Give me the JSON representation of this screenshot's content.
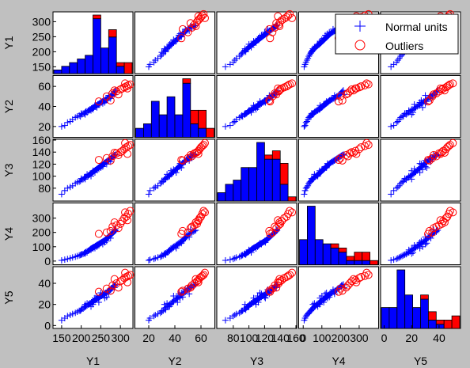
{
  "colors": {
    "background": "#c0c0c0",
    "panel": "#ffffff",
    "normal": "#0000ff",
    "outlier": "#ff0000",
    "bar_outline": "#000000"
  },
  "chart_data": {
    "type": "scatter",
    "title": "",
    "layout": "scatterplot-matrix",
    "grid": false,
    "legend_position": "top-right",
    "variables": [
      "Y1",
      "Y2",
      "Y3",
      "Y4",
      "Y5"
    ],
    "ranges": {
      "Y1": [
        130,
        330
      ],
      "Y2": [
        10,
        70
      ],
      "Y3": [
        60,
        160
      ],
      "Y4": [
        -20,
        400
      ],
      "Y5": [
        -2,
        55
      ]
    },
    "ticks": {
      "Y1": {
        "x": [
          150,
          200,
          250,
          300
        ],
        "y": [
          150,
          200,
          250,
          300
        ]
      },
      "Y2": {
        "x": [
          20,
          40,
          60
        ],
        "y": [
          20,
          40,
          60
        ]
      },
      "Y3": {
        "x": [
          80,
          100,
          120,
          140,
          160
        ],
        "y": [
          80,
          100,
          120,
          140,
          160
        ]
      },
      "Y4": {
        "x": [
          0,
          100,
          200,
          300
        ],
        "y": [
          0,
          100,
          200,
          300
        ]
      },
      "Y5": {
        "x": [
          0,
          20,
          40
        ],
        "y": [
          0,
          20,
          40
        ]
      }
    },
    "legend": [
      {
        "label": "Normal units",
        "marker": "plus",
        "color": "#0000ff"
      },
      {
        "label": "Outliers",
        "marker": "circle",
        "color": "#ff0000"
      }
    ],
    "series": [
      {
        "name": "Normal units",
        "marker": "plus",
        "color": "#0000ff",
        "points": [
          [
            150,
            20,
            70,
            5,
            5
          ],
          [
            158,
            21,
            76,
            10,
            7
          ],
          [
            165,
            24,
            80,
            15,
            9
          ],
          [
            172,
            25,
            82,
            20,
            10
          ],
          [
            178,
            27,
            84,
            25,
            11
          ],
          [
            185,
            29,
            88,
            30,
            12
          ],
          [
            190,
            30,
            90,
            35,
            13
          ],
          [
            195,
            31,
            91,
            40,
            14
          ],
          [
            198,
            30,
            92,
            42,
            14
          ],
          [
            202,
            32,
            94,
            48,
            16
          ],
          [
            205,
            33,
            95,
            50,
            16
          ],
          [
            208,
            33,
            97,
            55,
            17
          ],
          [
            210,
            34,
            98,
            60,
            18
          ],
          [
            212,
            35,
            99,
            63,
            18
          ],
          [
            215,
            35,
            100,
            68,
            19
          ],
          [
            218,
            36,
            101,
            72,
            20
          ],
          [
            220,
            36,
            102,
            75,
            20
          ],
          [
            222,
            37,
            103,
            80,
            21
          ],
          [
            224,
            37,
            104,
            85,
            21
          ],
          [
            226,
            38,
            105,
            88,
            22
          ],
          [
            228,
            38,
            106,
            92,
            22
          ],
          [
            230,
            39,
            107,
            95,
            23
          ],
          [
            232,
            39,
            108,
            98,
            23
          ],
          [
            234,
            40,
            109,
            100,
            24
          ],
          [
            236,
            40,
            110,
            105,
            24
          ],
          [
            238,
            41,
            111,
            108,
            25
          ],
          [
            240,
            41,
            112,
            112,
            25
          ],
          [
            242,
            42,
            113,
            115,
            26
          ],
          [
            244,
            42,
            114,
            118,
            26
          ],
          [
            246,
            43,
            115,
            122,
            27
          ],
          [
            248,
            43,
            116,
            125,
            27
          ],
          [
            250,
            44,
            117,
            128,
            28
          ],
          [
            252,
            44,
            118,
            132,
            28
          ],
          [
            254,
            45,
            119,
            135,
            29
          ],
          [
            256,
            45,
            120,
            138,
            29
          ],
          [
            258,
            46,
            121,
            142,
            30
          ],
          [
            260,
            46,
            122,
            145,
            30
          ],
          [
            262,
            47,
            123,
            150,
            31
          ],
          [
            264,
            47,
            124,
            155,
            31
          ],
          [
            266,
            48,
            125,
            160,
            32
          ],
          [
            268,
            48,
            126,
            165,
            32
          ],
          [
            270,
            49,
            127,
            170,
            33
          ],
          [
            272,
            49,
            128,
            175,
            33
          ],
          [
            274,
            50,
            129,
            180,
            34
          ],
          [
            276,
            50,
            130,
            185,
            35
          ],
          [
            278,
            51,
            131,
            190,
            35
          ],
          [
            280,
            52,
            132,
            195,
            36
          ],
          [
            282,
            53,
            133,
            200,
            37
          ],
          [
            284,
            54,
            134,
            205,
            38
          ],
          [
            286,
            55,
            135,
            210,
            38
          ],
          [
            288,
            56,
            136,
            215,
            39
          ],
          [
            215,
            34,
            103,
            60,
            21
          ],
          [
            225,
            36,
            100,
            78,
            18
          ],
          [
            235,
            41,
            106,
            90,
            26
          ],
          [
            245,
            42,
            112,
            110,
            22
          ],
          [
            255,
            43,
            116,
            118,
            30
          ],
          [
            265,
            46,
            120,
            140,
            27
          ],
          [
            275,
            48,
            124,
            160,
            34
          ],
          [
            200,
            33,
            96,
            45,
            15
          ],
          [
            210,
            32,
            95,
            52,
            20
          ],
          [
            230,
            37,
            109,
            88,
            20
          ],
          [
            250,
            45,
            114,
            125,
            31
          ],
          [
            260,
            44,
            121,
            130,
            26
          ],
          [
            270,
            51,
            126,
            168,
            30
          ],
          [
            240,
            39,
            111,
            100,
            28
          ],
          [
            285,
            52,
            135,
            220,
            36
          ]
        ]
      },
      {
        "name": "Outliers",
        "marker": "circle",
        "color": "#ff0000",
        "points": [
          [
            245,
            45,
            127,
            190,
            32
          ],
          [
            265,
            50,
            130,
            200,
            35
          ],
          [
            280,
            53,
            133,
            240,
            38
          ],
          [
            290,
            55,
            138,
            250,
            40
          ],
          [
            300,
            57,
            140,
            260,
            42
          ],
          [
            305,
            58,
            142,
            280,
            43
          ],
          [
            310,
            59,
            145,
            300,
            45
          ],
          [
            315,
            60,
            148,
            310,
            46
          ],
          [
            320,
            61,
            150,
            330,
            47
          ],
          [
            325,
            62,
            152,
            350,
            48
          ],
          [
            295,
            52,
            135,
            230,
            36
          ],
          [
            285,
            56,
            139,
            270,
            44
          ],
          [
            275,
            46,
            126,
            210,
            33
          ],
          [
            312,
            63,
            155,
            340,
            50
          ],
          [
            318,
            58,
            137,
            285,
            41
          ]
        ]
      }
    ],
    "histograms": {
      "Y1": {
        "edges": [
          130,
          150,
          170,
          190,
          210,
          230,
          250,
          270,
          290,
          310,
          330
        ],
        "normal": [
          1,
          2,
          3,
          4,
          5,
          15,
          7,
          10,
          2,
          0
        ],
        "outlier": [
          0,
          0,
          0,
          0,
          0,
          1,
          0,
          2,
          1,
          3
        ]
      },
      "Y2": {
        "edges": [
          10,
          16,
          22,
          28,
          34,
          40,
          46,
          52,
          58,
          64,
          70
        ],
        "normal": [
          2,
          3,
          8,
          5,
          9,
          5,
          12,
          3,
          2,
          0
        ],
        "outlier": [
          0,
          0,
          0,
          0,
          0,
          0,
          1,
          3,
          4,
          2
        ]
      },
      "Y3": {
        "edges": [
          60,
          70,
          80,
          90,
          100,
          110,
          120,
          130,
          140,
          150,
          160
        ],
        "normal": [
          2,
          4,
          5,
          8,
          8,
          14,
          10,
          10,
          4,
          0
        ],
        "outlier": [
          0,
          0,
          0,
          0,
          0,
          0,
          1,
          2,
          5,
          1
        ]
      },
      "Y4": {
        "edges": [
          -20,
          22,
          64,
          106,
          148,
          190,
          232,
          274,
          316,
          358,
          400
        ],
        "normal": [
          6,
          14,
          6,
          5,
          4,
          3,
          1,
          1,
          1,
          0
        ],
        "outlier": [
          0,
          0,
          0,
          0,
          1,
          1,
          1,
          2,
          2,
          1
        ]
      },
      "Y5": {
        "edges": [
          -2,
          3.7,
          9.4,
          15.1,
          20.8,
          26.5,
          32.2,
          37.9,
          43.6,
          49.3,
          55
        ],
        "normal": [
          5,
          5,
          14,
          8,
          5,
          7,
          2,
          1,
          0,
          0
        ],
        "outlier": [
          0,
          0,
          0,
          0,
          0,
          1,
          2,
          1,
          2,
          3
        ]
      }
    }
  }
}
